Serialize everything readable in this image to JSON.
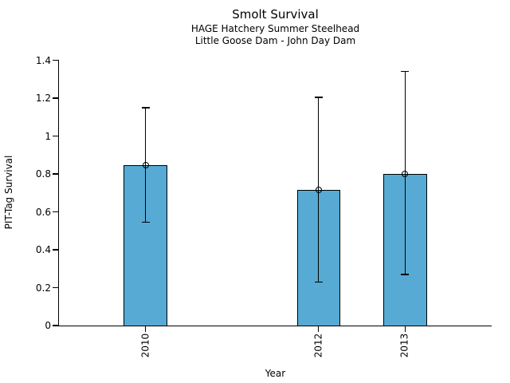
{
  "chart_data": {
    "type": "bar",
    "title": "Smolt Survival",
    "subtitle_line1": "HAGE Hatchery Summer Steelhead",
    "subtitle_line2": "Little Goose Dam - John Day Dam",
    "xlabel": "Year",
    "ylabel": "PIT-Tag Survival",
    "categories": [
      "2010",
      "2012",
      "2013"
    ],
    "x": [
      2010,
      2012,
      2013
    ],
    "values": [
      0.845,
      0.715,
      0.8
    ],
    "error_low": [
      0.545,
      0.23,
      0.27
    ],
    "error_high": [
      1.15,
      1.205,
      1.34
    ],
    "marker": "open-circle",
    "bar_width_years": 0.5,
    "xlim": [
      2009,
      2014
    ],
    "ylim": [
      0,
      1.4
    ],
    "yticks": [
      0,
      0.2,
      0.4,
      0.6,
      0.8,
      1,
      1.2,
      1.4
    ],
    "ytick_labels": [
      "0",
      "0.2",
      "0.4",
      "0.6",
      "0.8",
      "1",
      "1.2",
      "1.4"
    ],
    "grid": false,
    "legend": null,
    "colors": {
      "bar_fill": "#57AAD3",
      "bar_edge": "#000000",
      "error_bar": "#000000",
      "text": "#000000",
      "background": "#FFFFFF"
    }
  }
}
